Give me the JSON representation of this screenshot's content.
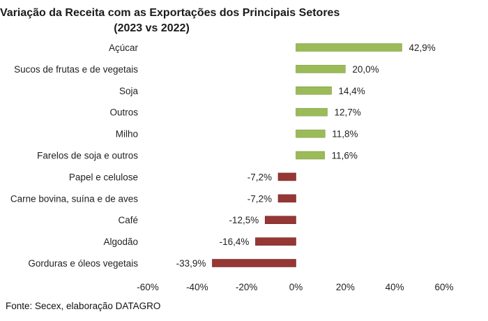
{
  "chart_data": {
    "type": "bar",
    "orientation": "horizontal",
    "title_line1": "Variação da Receita com as Exportações dos Principais Setores",
    "title_line2": "(2023 vs 2022)",
    "categories": [
      "Açúcar",
      "Sucos de frutas e de vegetais",
      "Soja",
      "Outros",
      "Milho",
      "Farelos de soja e outros",
      "Papel e celulose",
      "Carne bovina, suína e de aves",
      "Café",
      "Algodão",
      "Gorduras e óleos vegetais"
    ],
    "values": [
      42.9,
      20.0,
      14.4,
      12.7,
      11.8,
      11.6,
      -7.2,
      -7.2,
      -12.5,
      -16.4,
      -33.9
    ],
    "value_labels": [
      "42,9%",
      "20,0%",
      "14,4%",
      "12,7%",
      "11,8%",
      "11,6%",
      "-7,2%",
      "-7,2%",
      "-12,5%",
      "-16,4%",
      "-33,9%"
    ],
    "xlim": [
      -60,
      60
    ],
    "x_ticks": [
      -60,
      -40,
      -20,
      0,
      20,
      40,
      60
    ],
    "x_tick_labels": [
      "-60%",
      "-40%",
      "-20%",
      "0%",
      "20%",
      "40%",
      "60%"
    ],
    "grid": false,
    "legend": "none",
    "colors": {
      "positive": "#9bbb59",
      "positive_edge": "#7a9a3a",
      "negative": "#953735",
      "negative_edge": "#7a2a28"
    }
  },
  "source": "Fonte: Secex, elaboração DATAGRO"
}
